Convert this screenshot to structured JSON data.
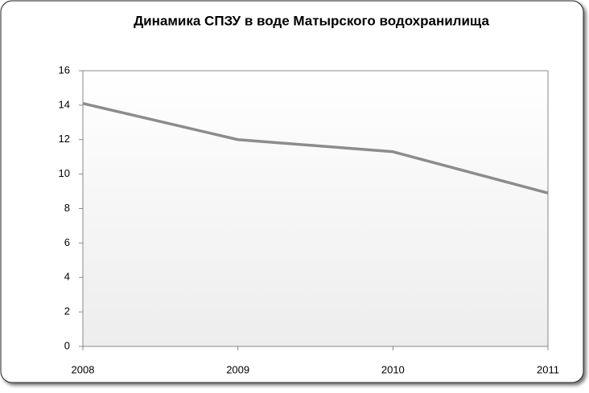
{
  "chart_data": {
    "type": "line",
    "title": "Динамика СПЗУ в воде Матырского водохранилища",
    "categories": [
      "2008",
      "2009",
      "2010",
      "2011"
    ],
    "series": [
      {
        "name": "СПЗУ",
        "color": "#8c8c8c",
        "values": [
          14.1,
          12.0,
          11.3,
          8.9
        ]
      }
    ],
    "ylim": [
      0,
      16
    ],
    "yticks": [
      0,
      2,
      4,
      6,
      8,
      10,
      12,
      14,
      16
    ],
    "grid": false
  }
}
